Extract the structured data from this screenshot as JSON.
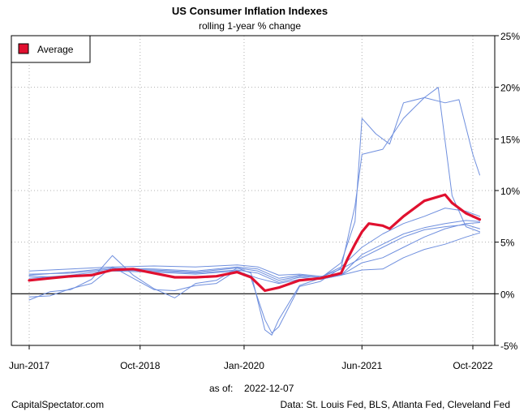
{
  "chart_data": {
    "type": "line",
    "title": "US Consumer Inflation Indexes",
    "subtitle": "rolling 1-year % change",
    "asof_label": "as of:",
    "asof_date": "2022-12-07",
    "source_left": "CapitalSpectator.com",
    "source_right": "Data: St. Louis Fed, BLS, Atlanta Fed, Cleveland Fed",
    "x_ticks": [
      "Jun-2017",
      "Oct-2018",
      "Jan-2020",
      "Jun-2021",
      "Oct-2022"
    ],
    "y_ticks": [
      "25%",
      "20%",
      "15%",
      "10%",
      "5%",
      "0%",
      "-5%"
    ],
    "ylim": [
      -5,
      25
    ],
    "grid": true,
    "legend_position": "top-left",
    "colors": {
      "average": "#e0102f",
      "indexes": "#6f8fde",
      "zero_line": "#000000",
      "grid": "#b0b0b0"
    },
    "series": [
      {
        "name": "Average",
        "highlight": true,
        "points": [
          [
            "2017-06",
            1.3
          ],
          [
            "2017-09",
            1.5
          ],
          [
            "2017-12",
            1.7
          ],
          [
            "2018-03",
            1.8
          ],
          [
            "2018-06",
            2.3
          ],
          [
            "2018-09",
            2.4
          ],
          [
            "2018-12",
            2.0
          ],
          [
            "2019-03",
            1.6
          ],
          [
            "2019-06",
            1.6
          ],
          [
            "2019-09",
            1.7
          ],
          [
            "2019-12",
            2.1
          ],
          [
            "2020-02",
            1.6
          ],
          [
            "2020-04",
            0.3
          ],
          [
            "2020-06",
            0.6
          ],
          [
            "2020-09",
            1.3
          ],
          [
            "2020-12",
            1.5
          ],
          [
            "2021-03",
            2.0
          ],
          [
            "2021-04",
            3.5
          ],
          [
            "2021-05",
            4.8
          ],
          [
            "2021-06",
            6.0
          ],
          [
            "2021-07",
            6.8
          ],
          [
            "2021-09",
            6.6
          ],
          [
            "2021-10",
            6.3
          ],
          [
            "2021-12",
            7.5
          ],
          [
            "2022-03",
            9.0
          ],
          [
            "2022-06",
            9.6
          ],
          [
            "2022-07",
            8.8
          ],
          [
            "2022-09",
            7.8
          ],
          [
            "2022-10",
            7.5
          ],
          [
            "2022-11",
            7.2
          ]
        ]
      },
      {
        "name": "",
        "points": [
          [
            "2017-06",
            -0.6
          ],
          [
            "2017-09",
            0.2
          ],
          [
            "2017-12",
            0.4
          ],
          [
            "2018-03",
            1.4
          ],
          [
            "2018-06",
            3.7
          ],
          [
            "2018-09",
            1.8
          ],
          [
            "2018-12",
            0.5
          ],
          [
            "2019-03",
            -0.4
          ],
          [
            "2019-06",
            1.0
          ],
          [
            "2019-09",
            1.3
          ],
          [
            "2019-12",
            2.5
          ],
          [
            "2020-02",
            2.0
          ],
          [
            "2020-04",
            -3.5
          ],
          [
            "2020-05",
            -4.0
          ],
          [
            "2020-06",
            -2.5
          ],
          [
            "2020-09",
            0.8
          ],
          [
            "2020-12",
            1.5
          ],
          [
            "2021-03",
            3.0
          ],
          [
            "2021-05",
            7.0
          ],
          [
            "2021-06",
            17.0
          ],
          [
            "2021-08",
            15.5
          ],
          [
            "2021-10",
            14.5
          ],
          [
            "2021-12",
            18.5
          ],
          [
            "2022-03",
            19.0
          ],
          [
            "2022-05",
            20.0
          ],
          [
            "2022-07",
            9.5
          ],
          [
            "2022-09",
            6.5
          ],
          [
            "2022-11",
            6.0
          ]
        ]
      },
      {
        "name": "",
        "points": [
          [
            "2017-06",
            -0.3
          ],
          [
            "2017-09",
            -0.2
          ],
          [
            "2017-12",
            0.5
          ],
          [
            "2018-03",
            1.0
          ],
          [
            "2018-06",
            2.6
          ],
          [
            "2018-09",
            1.5
          ],
          [
            "2018-12",
            0.4
          ],
          [
            "2019-03",
            0.3
          ],
          [
            "2019-06",
            0.8
          ],
          [
            "2019-09",
            1.0
          ],
          [
            "2019-12",
            2.3
          ],
          [
            "2020-02",
            1.5
          ],
          [
            "2020-04",
            -2.5
          ],
          [
            "2020-05",
            -3.8
          ],
          [
            "2020-06",
            -3.2
          ],
          [
            "2020-09",
            0.7
          ],
          [
            "2020-12",
            1.2
          ],
          [
            "2021-03",
            2.5
          ],
          [
            "2021-05",
            8.5
          ],
          [
            "2021-06",
            13.5
          ],
          [
            "2021-09",
            14.0
          ],
          [
            "2021-12",
            17.0
          ],
          [
            "2022-03",
            19.0
          ],
          [
            "2022-06",
            18.5
          ],
          [
            "2022-08",
            18.8
          ],
          [
            "2022-10",
            13.5
          ],
          [
            "2022-11",
            11.5
          ]
        ]
      },
      {
        "name": "",
        "points": [
          [
            "2017-06",
            2.2
          ],
          [
            "2017-12",
            2.4
          ],
          [
            "2018-06",
            2.6
          ],
          [
            "2018-12",
            2.7
          ],
          [
            "2019-06",
            2.6
          ],
          [
            "2019-12",
            2.8
          ],
          [
            "2020-03",
            2.6
          ],
          [
            "2020-06",
            1.8
          ],
          [
            "2020-09",
            1.9
          ],
          [
            "2020-12",
            1.7
          ],
          [
            "2021-03",
            1.8
          ],
          [
            "2021-06",
            3.0
          ],
          [
            "2021-09",
            3.5
          ],
          [
            "2021-12",
            4.5
          ],
          [
            "2022-03",
            5.5
          ],
          [
            "2022-06",
            6.3
          ],
          [
            "2022-09",
            6.8
          ],
          [
            "2022-11",
            6.9
          ]
        ]
      },
      {
        "name": "",
        "points": [
          [
            "2017-06",
            1.7
          ],
          [
            "2017-12",
            1.6
          ],
          [
            "2018-06",
            2.2
          ],
          [
            "2018-12",
            2.1
          ],
          [
            "2019-06",
            1.9
          ],
          [
            "2019-12",
            2.2
          ],
          [
            "2020-03",
            1.5
          ],
          [
            "2020-06",
            1.0
          ],
          [
            "2020-09",
            1.4
          ],
          [
            "2020-12",
            1.4
          ],
          [
            "2021-03",
            1.8
          ],
          [
            "2021-06",
            2.3
          ],
          [
            "2021-09",
            2.4
          ],
          [
            "2021-12",
            3.5
          ],
          [
            "2022-03",
            4.3
          ],
          [
            "2022-06",
            4.8
          ],
          [
            "2022-09",
            5.5
          ],
          [
            "2022-11",
            5.9
          ]
        ]
      },
      {
        "name": "",
        "points": [
          [
            "2017-06",
            1.9
          ],
          [
            "2017-12",
            2.0
          ],
          [
            "2018-06",
            2.4
          ],
          [
            "2018-12",
            2.3
          ],
          [
            "2019-06",
            2.1
          ],
          [
            "2019-12",
            2.5
          ],
          [
            "2020-03",
            2.2
          ],
          [
            "2020-06",
            1.3
          ],
          [
            "2020-09",
            1.7
          ],
          [
            "2020-12",
            1.6
          ],
          [
            "2021-03",
            2.4
          ],
          [
            "2021-06",
            3.5
          ],
          [
            "2021-09",
            4.5
          ],
          [
            "2021-12",
            5.5
          ],
          [
            "2022-03",
            6.2
          ],
          [
            "2022-06",
            6.5
          ],
          [
            "2022-09",
            6.7
          ],
          [
            "2022-11",
            6.3
          ]
        ]
      },
      {
        "name": "",
        "points": [
          [
            "2017-06",
            1.5
          ],
          [
            "2017-12",
            1.8
          ],
          [
            "2018-06",
            2.3
          ],
          [
            "2018-12",
            2.2
          ],
          [
            "2019-06",
            2.0
          ],
          [
            "2019-12",
            2.3
          ],
          [
            "2020-03",
            2.0
          ],
          [
            "2020-06",
            1.1
          ],
          [
            "2020-09",
            1.6
          ],
          [
            "2020-12",
            1.4
          ],
          [
            "2021-03",
            1.8
          ],
          [
            "2021-06",
            3.8
          ],
          [
            "2021-09",
            4.8
          ],
          [
            "2021-12",
            5.8
          ],
          [
            "2022-03",
            6.4
          ],
          [
            "2022-06",
            6.8
          ],
          [
            "2022-09",
            7.1
          ],
          [
            "2022-11",
            7.0
          ]
        ]
      },
      {
        "name": "",
        "points": [
          [
            "2017-06",
            1.8
          ],
          [
            "2017-12",
            2.1
          ],
          [
            "2018-06",
            2.5
          ],
          [
            "2018-12",
            2.4
          ],
          [
            "2019-06",
            2.2
          ],
          [
            "2019-12",
            2.6
          ],
          [
            "2020-03",
            2.4
          ],
          [
            "2020-06",
            1.5
          ],
          [
            "2020-09",
            1.8
          ],
          [
            "2020-12",
            1.6
          ],
          [
            "2021-03",
            2.6
          ],
          [
            "2021-06",
            4.5
          ],
          [
            "2021-09",
            5.8
          ],
          [
            "2021-12",
            6.8
          ],
          [
            "2022-03",
            7.5
          ],
          [
            "2022-06",
            8.3
          ],
          [
            "2022-09",
            8.0
          ],
          [
            "2022-11",
            7.5
          ]
        ]
      }
    ]
  }
}
